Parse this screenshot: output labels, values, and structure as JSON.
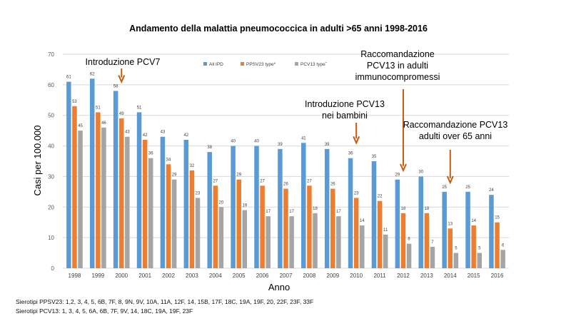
{
  "chart_data": {
    "type": "bar",
    "title": "Andamento della malattia pneumococcica in adulti >65 anni 1998-2016",
    "xlabel": "Anno",
    "ylabel": "Casi per 100.000",
    "ylim": [
      0,
      70
    ],
    "yticks": [
      "0",
      "10",
      "20",
      "30",
      "40",
      "50",
      "60",
      "70"
    ],
    "grid": true,
    "legend_position": "top-center",
    "categories": [
      "1998",
      "1999",
      "2000",
      "2001",
      "2002",
      "2003",
      "2004",
      "2005",
      "2006",
      "2007",
      "2008",
      "2009",
      "2010",
      "2011",
      "2012",
      "2013",
      "2014",
      "2015",
      "2016"
    ],
    "series": [
      {
        "name": "All IPD",
        "color": "#5b9bd5",
        "values": [
          61,
          62,
          58,
          51,
          43,
          42,
          38,
          40,
          40,
          39,
          41,
          39,
          36,
          35,
          29,
          30,
          25,
          25,
          24
        ],
        "labels": [
          "61",
          "62",
          "58",
          "51",
          "43",
          "42",
          "38",
          "40",
          "40",
          "39",
          "41",
          "39",
          "36",
          "35",
          "29",
          "30",
          "25",
          "25",
          "24"
        ]
      },
      {
        "name": "PPSV23 type*",
        "color": "#ed7d31",
        "values": [
          53,
          51,
          49,
          42,
          34,
          32,
          27,
          29,
          27,
          26,
          27,
          26,
          23,
          22,
          18,
          18,
          13,
          14,
          15
        ],
        "labels": [
          "53",
          "51",
          "49",
          "42",
          "34",
          "32",
          "27",
          "29",
          "27",
          "26",
          "27",
          "26",
          "23",
          "22",
          "18",
          "18",
          "13",
          "14",
          "15"
        ]
      },
      {
        "name": "PCV13 typeˆ",
        "color": "#a5a5a5",
        "values": [
          45,
          46,
          43,
          36,
          29,
          23,
          20,
          19,
          17,
          17,
          18,
          17,
          14,
          11,
          8,
          7,
          5,
          5,
          6
        ],
        "labels": [
          "45",
          "46",
          "43",
          "36",
          "29",
          "23",
          "20",
          "19",
          "17",
          "17",
          "18",
          "17",
          "14",
          "11",
          "8",
          "7",
          "5",
          "5",
          "6"
        ]
      }
    ],
    "annotations": [
      {
        "id": "pcv7",
        "lines": [
          "Introduzione PCV7"
        ],
        "category": "2000",
        "arrow_tip_value": 61
      },
      {
        "id": "pcv13-bambini",
        "lines": [
          "Introduzione PCV13",
          "nei bambini"
        ],
        "category": "2010",
        "arrow_tip_value": 41
      },
      {
        "id": "racc-immuno",
        "lines": [
          "Raccomandazione",
          "PCV13 in adulti",
          "immunocompromessi"
        ],
        "category": "2012",
        "arrow_tip_value": 32
      },
      {
        "id": "racc-over65",
        "lines": [
          "Raccomandazione PCV13",
          "adulti over 65 anni"
        ],
        "category": "2014",
        "arrow_tip_value": 28
      }
    ]
  },
  "notes": {
    "ppsv23": "Sierotipi PPSV23: 1,2, 3, 4, 5, 6B, 7F, 8, 9N, 9V, 10A, 11A, 12F, 14, 15B, 17F, 18C, 19A, 19F, 20, 22F, 23F, 33F",
    "pcv13": "Sierotipi PCV13: 1, 3, 4, 5, 6A, 6B, 7F, 9V, 14, 18C, 19A, 19F, 23F"
  }
}
